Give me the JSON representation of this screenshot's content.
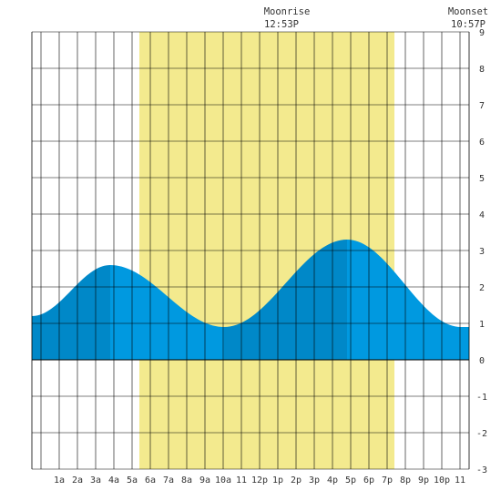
{
  "colors": {
    "background": "#ffffff",
    "daylight": "#f3ea8e",
    "tide_rising": "#0088c8",
    "tide_falling": "#0099e0",
    "grid": "#000000",
    "text": "#333333"
  },
  "events": {
    "moonrise": {
      "label": "Moonrise",
      "time": "12:53P",
      "hour": 12.883
    },
    "moonset": {
      "label": "Moonset",
      "time": "10:57P",
      "hour": 22.95
    }
  },
  "chart_data": {
    "type": "area",
    "x_unit": "hour of day",
    "xlim": [
      -0.5,
      23.5
    ],
    "ylim": [
      -3,
      9
    ],
    "y_ticks": [
      -3,
      -2,
      -1,
      0,
      1,
      2,
      3,
      4,
      5,
      6,
      7,
      8,
      9
    ],
    "x_tick_labels": [
      {
        "hour": 1,
        "label": "1a"
      },
      {
        "hour": 2,
        "label": "2a"
      },
      {
        "hour": 3,
        "label": "3a"
      },
      {
        "hour": 4,
        "label": "4a"
      },
      {
        "hour": 5,
        "label": "5a"
      },
      {
        "hour": 6,
        "label": "6a"
      },
      {
        "hour": 7,
        "label": "7a"
      },
      {
        "hour": 8,
        "label": "8a"
      },
      {
        "hour": 9,
        "label": "9a"
      },
      {
        "hour": 10,
        "label": "10a"
      },
      {
        "hour": 11,
        "label": "11"
      },
      {
        "hour": 12,
        "label": "12p"
      },
      {
        "hour": 13,
        "label": "1p"
      },
      {
        "hour": 14,
        "label": "2p"
      },
      {
        "hour": 15,
        "label": "3p"
      },
      {
        "hour": 16,
        "label": "4p"
      },
      {
        "hour": 17,
        "label": "5p"
      },
      {
        "hour": 18,
        "label": "6p"
      },
      {
        "hour": 19,
        "label": "7p"
      },
      {
        "hour": 20,
        "label": "8p"
      },
      {
        "hour": 21,
        "label": "9p"
      },
      {
        "hour": 22,
        "label": "10p"
      },
      {
        "hour": 23,
        "label": "11"
      }
    ],
    "daylight": {
      "start": 5.4,
      "end": 19.4
    },
    "tide_extremes": [
      {
        "hour": -0.5,
        "height": 1.2
      },
      {
        "hour": 3.8,
        "height": 2.6
      },
      {
        "hour": 10.05,
        "height": 0.9
      },
      {
        "hour": 16.8,
        "height": 3.3
      },
      {
        "hour": 23.05,
        "height": 0.9
      },
      {
        "hour": 23.5,
        "height": 0.9
      }
    ],
    "grid": true
  }
}
